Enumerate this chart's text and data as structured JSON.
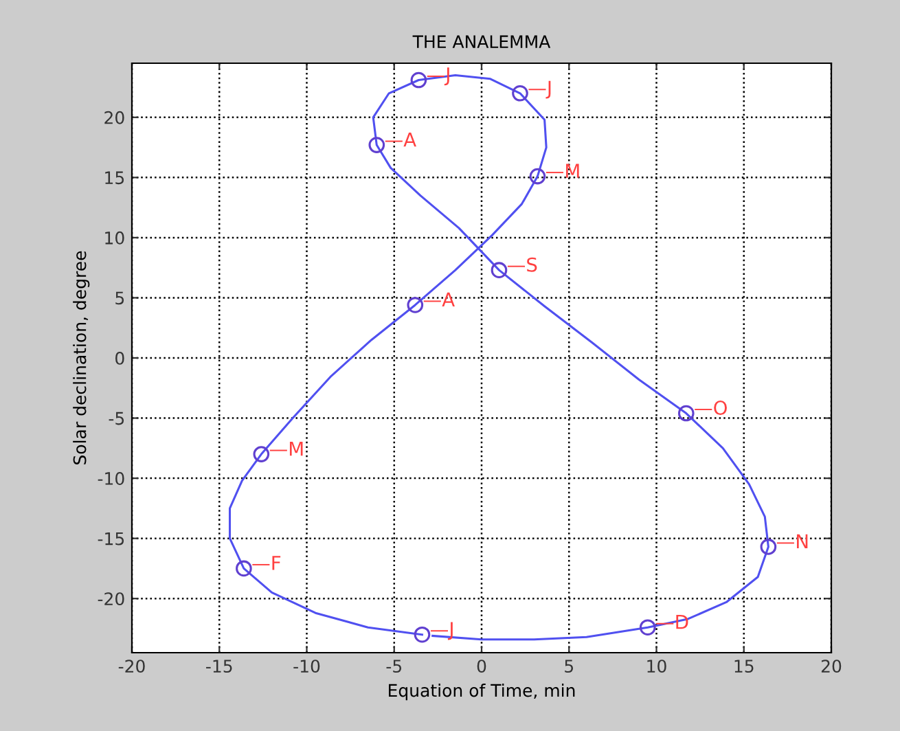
{
  "chart_data": {
    "type": "line",
    "title": "THE ANALEMMA",
    "xlabel": "Equation of Time, min",
    "ylabel": "Solar declination, degree",
    "xlim": [
      -20,
      20
    ],
    "ylim": [
      -24.5,
      24.5
    ],
    "xticks": [
      -20,
      -15,
      -10,
      -5,
      0,
      5,
      10,
      15,
      20
    ],
    "yticks": [
      -20,
      -15,
      -10,
      -5,
      0,
      5,
      10,
      15,
      20
    ],
    "grid": true,
    "series": [
      {
        "color": "#5050f0",
        "x": [
          -3.4,
          -6.5,
          -9.5,
          -12,
          -13.6,
          -14.4,
          -14.4,
          -13.7,
          -12.6,
          -10.8,
          -8.6,
          -6.3,
          -3.8,
          -1.5,
          0.6,
          2.3,
          3.2,
          3.7,
          3.6,
          2.2,
          0.5,
          -1.5,
          -3.6,
          -5.3,
          -6.2,
          -6,
          -5.2,
          -3.5,
          -1.3,
          1,
          3.6,
          6.3,
          9,
          11.7,
          13.8,
          15.3,
          16.2,
          16.4,
          15.8,
          14,
          11.8,
          9.5,
          6,
          3,
          0,
          -2.8
        ],
        "values": [
          -23.0,
          -22.4,
          -21.2,
          -19.5,
          -17.5,
          -15,
          -12.5,
          -10.2,
          -8,
          -5,
          -1.5,
          1.5,
          4.4,
          7.3,
          10.2,
          12.8,
          15.1,
          17.5,
          19.8,
          22.0,
          23.2,
          23.5,
          23.1,
          22,
          20,
          17.7,
          15.8,
          13.5,
          10.8,
          7.3,
          4.3,
          1.3,
          -1.8,
          -4.6,
          -7.5,
          -10.5,
          -13.2,
          -15.7,
          -18.2,
          -20.3,
          -21.7,
          -22.4,
          -23.2,
          -23.4,
          -23.4,
          -23.1
        ]
      },
      {
        "type": "scatter",
        "color": "#6040d0",
        "marker": "circle",
        "x": [
          -3.4,
          -13.6,
          -12.6,
          -3.8,
          3.2,
          2.2,
          -3.6,
          -6,
          1,
          11.7,
          16.4,
          9.5
        ],
        "values": [
          -23.0,
          -17.5,
          -8,
          4.4,
          15.1,
          22.0,
          23.1,
          17.7,
          7.3,
          -4.6,
          -15.7,
          -22.4
        ]
      }
    ],
    "annotations": [
      {
        "text": "—J",
        "x": -3.4,
        "y": -23.0
      },
      {
        "text": "—F",
        "x": -13.6,
        "y": -17.5
      },
      {
        "text": "—M",
        "x": -12.6,
        "y": -8
      },
      {
        "text": "—A",
        "x": -3.8,
        "y": 4.4
      },
      {
        "text": "—M",
        "x": 3.2,
        "y": 15.1
      },
      {
        "text": "—J",
        "x": 2.2,
        "y": 22.0
      },
      {
        "text": "—J",
        "x": -3.6,
        "y": 23.1
      },
      {
        "text": "—A",
        "x": -6,
        "y": 17.7
      },
      {
        "text": "—S",
        "x": 1,
        "y": 7.3
      },
      {
        "text": "—O",
        "x": 11.7,
        "y": -4.6
      },
      {
        "text": "—N",
        "x": 16.4,
        "y": -15.7
      },
      {
        "text": "—D",
        "x": 9.5,
        "y": -22.4
      }
    ]
  }
}
